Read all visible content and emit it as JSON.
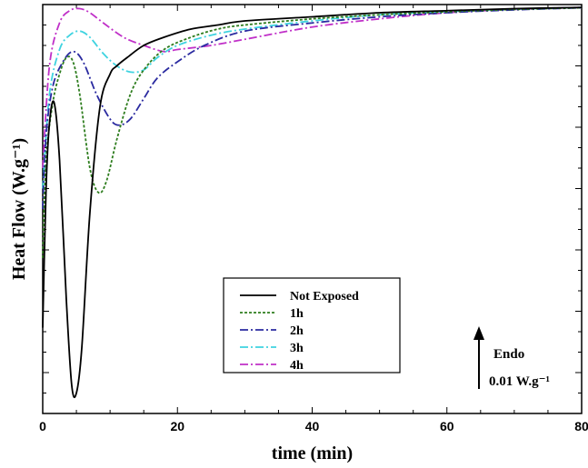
{
  "chart_data": {
    "type": "line",
    "xlabel": "time (min)",
    "ylabel": "Heat Flow (W.g⁻¹)",
    "xlim": [
      0,
      80
    ],
    "ylim": [
      0,
      1
    ],
    "x_ticks": [
      0,
      20,
      40,
      60,
      80
    ],
    "x_tick_labels": [
      "0",
      "20",
      "40",
      "60",
      "80"
    ],
    "y_tick_labels_shown": false,
    "grid": false,
    "legend": {
      "placement": "lower-center",
      "entries": [
        "Not Exposed",
        "1h",
        "2h",
        "3h",
        "4h"
      ]
    },
    "annotation": {
      "arrow_direction": "up",
      "label": "Endo",
      "scale_label": "0.01 W.g⁻¹"
    },
    "series": [
      {
        "name": "Not Exposed",
        "color": "#000000",
        "style": "solid",
        "points": [
          [
            0,
            0.21
          ],
          [
            0.5,
            0.55
          ],
          [
            1,
            0.71
          ],
          [
            1.7,
            0.76
          ],
          [
            2.5,
            0.62
          ],
          [
            3.5,
            0.28
          ],
          [
            4.3,
            0.07
          ],
          [
            5,
            0.05
          ],
          [
            5.8,
            0.16
          ],
          [
            7,
            0.49
          ],
          [
            8.5,
            0.75
          ],
          [
            10,
            0.83
          ],
          [
            11,
            0.85
          ],
          [
            12.5,
            0.87
          ],
          [
            15,
            0.9
          ],
          [
            18,
            0.92
          ],
          [
            22,
            0.94
          ],
          [
            26,
            0.95
          ],
          [
            30,
            0.96
          ],
          [
            40,
            0.97
          ],
          [
            50,
            0.98
          ],
          [
            60,
            0.985
          ],
          [
            70,
            0.99
          ],
          [
            80,
            0.993
          ]
        ]
      },
      {
        "name": "1h",
        "color": "#2e7d1e",
        "style": "dotted",
        "points": [
          [
            0,
            0.38
          ],
          [
            0.5,
            0.62
          ],
          [
            1.5,
            0.76
          ],
          [
            2.5,
            0.83
          ],
          [
            3.5,
            0.87
          ],
          [
            4.5,
            0.86
          ],
          [
            5.5,
            0.78
          ],
          [
            7,
            0.6
          ],
          [
            8.3,
            0.54
          ],
          [
            9.5,
            0.57
          ],
          [
            11,
            0.67
          ],
          [
            13,
            0.78
          ],
          [
            15,
            0.84
          ],
          [
            18,
            0.89
          ],
          [
            22,
            0.92
          ],
          [
            26,
            0.94
          ],
          [
            30,
            0.95
          ],
          [
            40,
            0.965
          ],
          [
            50,
            0.975
          ],
          [
            60,
            0.982
          ],
          [
            70,
            0.988
          ],
          [
            80,
            0.992
          ]
        ]
      },
      {
        "name": "2h",
        "color": "#2a2aa0",
        "style": "dashdot",
        "points": [
          [
            0,
            0.5
          ],
          [
            0.5,
            0.68
          ],
          [
            1.5,
            0.8
          ],
          [
            3,
            0.86
          ],
          [
            4.5,
            0.885
          ],
          [
            6,
            0.86
          ],
          [
            8,
            0.78
          ],
          [
            10,
            0.72
          ],
          [
            11.3,
            0.705
          ],
          [
            13,
            0.72
          ],
          [
            15,
            0.77
          ],
          [
            17,
            0.82
          ],
          [
            20,
            0.86
          ],
          [
            24,
            0.9
          ],
          [
            30,
            0.935
          ],
          [
            40,
            0.955
          ],
          [
            50,
            0.97
          ],
          [
            60,
            0.98
          ],
          [
            70,
            0.987
          ],
          [
            80,
            0.992
          ]
        ]
      },
      {
        "name": "3h",
        "color": "#3fd3e0",
        "style": "dashdot",
        "points": [
          [
            0,
            0.55
          ],
          [
            1,
            0.78
          ],
          [
            2.5,
            0.89
          ],
          [
            4,
            0.925
          ],
          [
            5.5,
            0.935
          ],
          [
            7,
            0.92
          ],
          [
            9,
            0.88
          ],
          [
            11,
            0.85
          ],
          [
            13,
            0.835
          ],
          [
            15,
            0.84
          ],
          [
            17,
            0.87
          ],
          [
            20,
            0.9
          ],
          [
            25,
            0.925
          ],
          [
            30,
            0.94
          ],
          [
            40,
            0.96
          ],
          [
            50,
            0.975
          ],
          [
            60,
            0.983
          ],
          [
            70,
            0.989
          ],
          [
            80,
            0.993
          ]
        ]
      },
      {
        "name": "4h",
        "color": "#c030c8",
        "style": "dashdot",
        "points": [
          [
            0,
            0.6
          ],
          [
            1,
            0.85
          ],
          [
            2.5,
            0.955
          ],
          [
            4,
            0.985
          ],
          [
            5.5,
            0.99
          ],
          [
            7,
            0.98
          ],
          [
            9,
            0.955
          ],
          [
            12,
            0.92
          ],
          [
            15,
            0.9
          ],
          [
            18,
            0.885
          ],
          [
            20,
            0.89
          ],
          [
            25,
            0.9
          ],
          [
            30,
            0.915
          ],
          [
            40,
            0.945
          ],
          [
            50,
            0.965
          ],
          [
            60,
            0.98
          ],
          [
            70,
            0.988
          ],
          [
            80,
            0.993
          ]
        ]
      }
    ]
  }
}
